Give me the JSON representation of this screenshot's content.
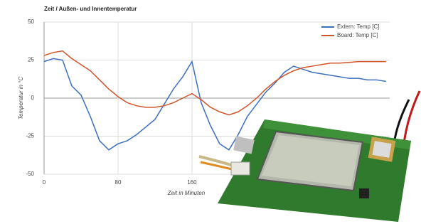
{
  "chart_data": {
    "type": "line",
    "title": "Zeit / Außen- und Innentemperatur",
    "x_label": "Zeit in Minuten",
    "y_label": "Temperatur in °C",
    "x": [
      0,
      10,
      20,
      30,
      40,
      50,
      60,
      70,
      80,
      90,
      100,
      110,
      120,
      130,
      140,
      150,
      160,
      170,
      180,
      190,
      200,
      210,
      220,
      230,
      240,
      250,
      260,
      270,
      280,
      290,
      300,
      310,
      320,
      330,
      340,
      350,
      360,
      370
    ],
    "series": [
      {
        "name": "Extern: Temp [C]",
        "color": "#3d6fbf",
        "values": [
          24,
          26,
          25,
          8,
          2,
          -12,
          -28,
          -34,
          -30,
          -28,
          -24,
          -19,
          -14,
          -4,
          6,
          14,
          24,
          -3,
          -18,
          -30,
          -34,
          -24,
          -12,
          -4,
          4,
          10,
          17,
          21,
          19,
          17,
          16,
          15,
          14,
          13,
          13,
          12,
          12,
          11
        ]
      },
      {
        "name": "Board: Temp [C]",
        "color": "#d0542a",
        "values": [
          28,
          30,
          31,
          26,
          22,
          18,
          12,
          6,
          1,
          -3,
          -5,
          -6,
          -6,
          -5,
          -3,
          0,
          3,
          -1,
          -6,
          -9,
          -11,
          -9,
          -5,
          0,
          6,
          11,
          15,
          18,
          20,
          21,
          22,
          23,
          23,
          23.5,
          24,
          24,
          24,
          24
        ]
      }
    ],
    "xlim": [
      0,
      374
    ],
    "xticks": [
      0,
      80,
      160
    ],
    "ylim": [
      -50,
      50
    ],
    "yticks": [
      -50,
      -25,
      0,
      25,
      50
    ],
    "grid": true,
    "legend": "top-right"
  }
}
